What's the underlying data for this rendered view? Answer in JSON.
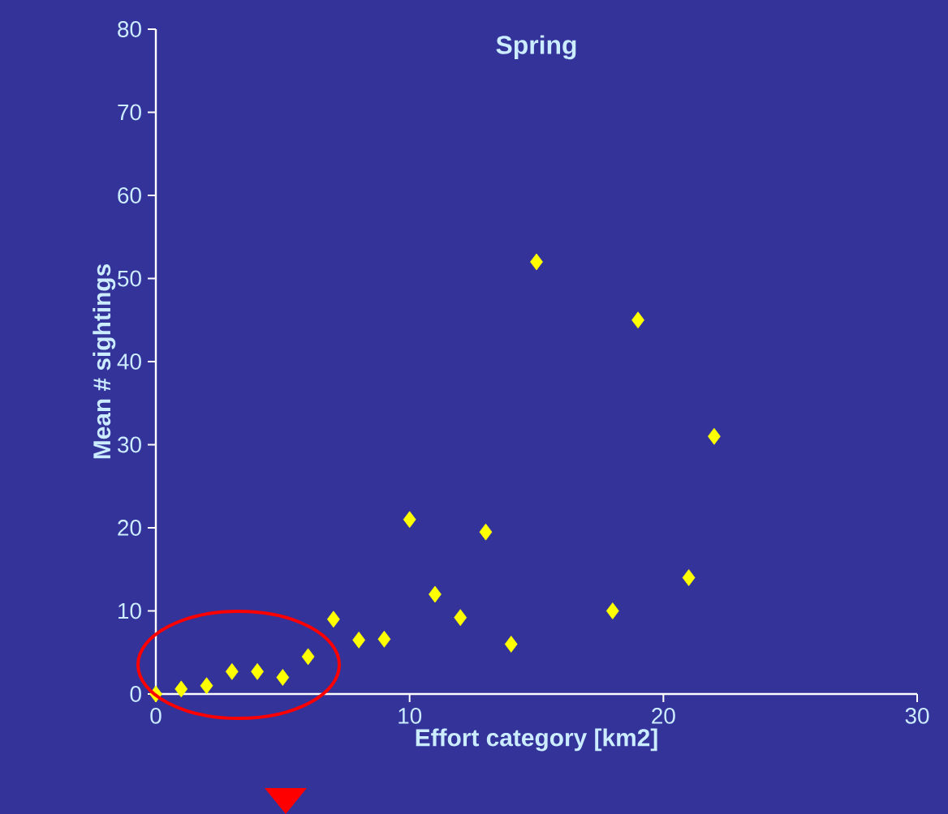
{
  "chart_data": {
    "type": "scatter",
    "title": "Spring",
    "xlabel": "Effort category [km2]",
    "ylabel": "Mean # sightings",
    "x": [
      0,
      1,
      2,
      3,
      4,
      5,
      6,
      7,
      8,
      9,
      10,
      11,
      12,
      13,
      14,
      15,
      18,
      19,
      21,
      22
    ],
    "values": [
      0,
      0.6,
      1,
      2.7,
      2.7,
      2,
      4.5,
      9,
      6.5,
      6.6,
      21,
      12,
      9.2,
      19.5,
      6,
      52,
      10,
      45,
      14,
      31
    ],
    "color": "#ffff00",
    "marker": "diamond",
    "xlim": [
      0,
      30
    ],
    "ylim": [
      0,
      80
    ],
    "xticks": [
      0,
      10,
      20,
      30
    ],
    "yticks": [
      0,
      10,
      20,
      30,
      40,
      50,
      60,
      70,
      80
    ]
  }
}
